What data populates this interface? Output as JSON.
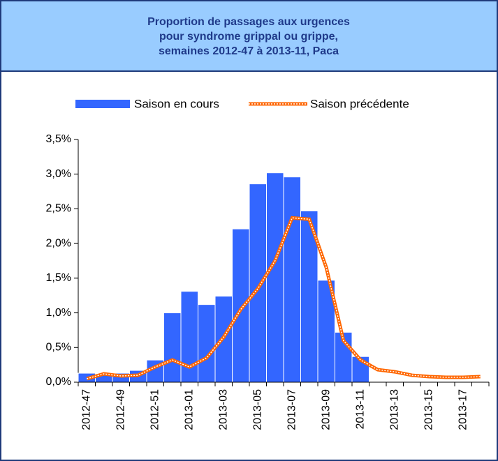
{
  "chart_data": {
    "type": "bar-line",
    "title": [
      "Proportion de passages aux urgences",
      "pour syndrome grippal ou grippe,",
      "semaines 2012-47 à 2013-11, Paca"
    ],
    "categories": [
      "2012-47",
      null,
      "2012-49",
      null,
      "2012-51",
      null,
      "2013-01",
      null,
      "2013-03",
      null,
      "2013-05",
      null,
      "2013-07",
      null,
      "2013-09",
      null,
      "2013-11",
      null,
      "2013-13",
      null,
      "2013-15",
      null,
      "2013-17",
      null
    ],
    "series": [
      {
        "name": "Saison en cours",
        "type": "bar",
        "color": "#3366ff",
        "values": [
          0.13,
          0.12,
          0.13,
          0.17,
          0.32,
          1.0,
          1.31,
          1.12,
          1.24,
          2.21,
          2.86,
          3.02,
          2.96,
          2.47,
          1.47,
          0.72,
          0.37,
          null,
          null,
          null,
          null,
          null,
          null,
          null
        ]
      },
      {
        "name": "Saison précédente",
        "type": "line",
        "color": "#ff6600",
        "values": [
          0.05,
          0.12,
          0.09,
          0.1,
          0.22,
          0.32,
          0.22,
          0.35,
          0.65,
          1.05,
          1.35,
          1.75,
          2.37,
          2.35,
          1.65,
          0.6,
          0.32,
          0.18,
          0.15,
          0.1,
          0.08,
          0.07,
          0.07,
          0.08
        ]
      }
    ],
    "ylim": [
      0,
      3.5
    ],
    "yticks": [
      {
        "value": 0,
        "label": "0,0%"
      },
      {
        "value": 0.5,
        "label": "0,5%"
      },
      {
        "value": 1,
        "label": "1,0%"
      },
      {
        "value": 1.5,
        "label": "1,5%"
      },
      {
        "value": 2,
        "label": "2,0%"
      },
      {
        "value": 2.5,
        "label": "2,5%"
      },
      {
        "value": 3,
        "label": "3,0%"
      },
      {
        "value": 3.5,
        "label": "3,5%"
      }
    ],
    "legend": "top"
  }
}
